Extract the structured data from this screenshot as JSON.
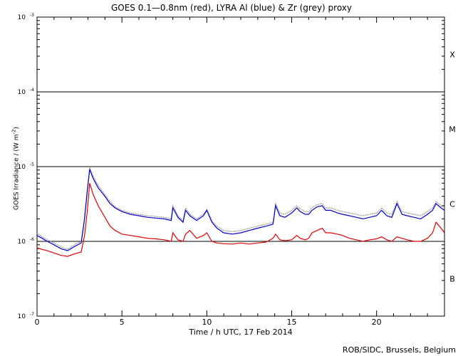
{
  "chart_data": {
    "type": "line",
    "title": "GOES 0.1—0.8nm (red), LYRA Al (blue) & Zr (grey) proxy",
    "xlabel": "Time / h UTC, 17 Feb 2014",
    "ylabel_prefix": "GOES Irradiance / (W m",
    "ylabel_exp": "-2",
    "ylabel_suffix": ")",
    "credit": "ROB/SIDC, Brussels, Belgium",
    "xlim": [
      0,
      24
    ],
    "x_ticks": [
      0,
      5,
      10,
      15,
      20
    ],
    "ylim": [
      1e-07,
      0.001
    ],
    "y_scale": "log",
    "y_ticks": [
      {
        "value": 1e-07,
        "base": "10",
        "exp": "-7"
      },
      {
        "value": 1e-06,
        "base": "10",
        "exp": "-6"
      },
      {
        "value": 1e-05,
        "base": "10",
        "exp": "-5"
      },
      {
        "value": 0.0001,
        "base": "10",
        "exp": "-4"
      },
      {
        "value": 0.001,
        "base": "10",
        "exp": "-3"
      }
    ],
    "flare_classes": [
      {
        "label": "X",
        "value": 0.000316
      },
      {
        "label": "M",
        "value": 3.16e-05
      },
      {
        "label": "C",
        "value": 3.16e-06
      },
      {
        "label": "B",
        "value": 3.16e-07
      }
    ],
    "threshold_lines": [
      1e-06,
      1e-05,
      0.0001
    ],
    "colors": {
      "goes": "#e00000",
      "lyra_al": "#0000cc",
      "lyra_zr": "#888888",
      "axis": "#000000"
    },
    "series": [
      {
        "color": "#e00000",
        "x": [
          0,
          0.3,
          0.6,
          1.0,
          1.4,
          1.8,
          2.2,
          2.6,
          2.8,
          2.95,
          3.1,
          3.3,
          3.6,
          4.0,
          4.3,
          4.6,
          5.0,
          5.5,
          6.0,
          6.5,
          7.0,
          7.5,
          7.9,
          8.0,
          8.3,
          8.6,
          8.75,
          9.0,
          9.4,
          9.8,
          10.0,
          10.3,
          10.6,
          11.0,
          11.5,
          12.0,
          12.5,
          13.0,
          13.5,
          13.9,
          14.05,
          14.3,
          14.6,
          15.0,
          15.3,
          15.5,
          15.8,
          16.0,
          16.2,
          16.5,
          16.8,
          17.0,
          17.3,
          17.7,
          18.0,
          18.4,
          18.8,
          19.2,
          19.6,
          20.0,
          20.3,
          20.6,
          20.9,
          21.2,
          21.5,
          21.8,
          22.2,
          22.6,
          23.0,
          23.3,
          23.5,
          23.8,
          24.0
        ],
        "y": [
          8.2e-07,
          7.8e-07,
          7.5e-07,
          7e-07,
          6.5e-07,
          6.3e-07,
          6.8e-07,
          7.2e-07,
          1.2e-06,
          2.4e-06,
          6e-06,
          4.3e-06,
          3e-06,
          2.1e-06,
          1.6e-06,
          1.4e-06,
          1.25e-06,
          1.2e-06,
          1.15e-06,
          1.1e-06,
          1.08e-06,
          1.05e-06,
          1e-06,
          1.3e-06,
          1.05e-06,
          1e-06,
          1.25e-06,
          1.4e-06,
          1.1e-06,
          1.2e-06,
          1.3e-06,
          1e-06,
          9.5e-07,
          9.3e-07,
          9.2e-07,
          9.5e-07,
          9.2e-07,
          9.5e-07,
          9.8e-07,
          1.1e-06,
          1.25e-06,
          1.05e-06,
          1.02e-06,
          1.05e-06,
          1.2e-06,
          1.1e-06,
          1.05e-06,
          1.1e-06,
          1.3e-06,
          1.4e-06,
          1.5e-06,
          1.3e-06,
          1.3e-06,
          1.25e-06,
          1.2e-06,
          1.1e-06,
          1.05e-06,
          1e-06,
          1.05e-06,
          1.08e-06,
          1.15e-06,
          1.05e-06,
          1e-06,
          1.15e-06,
          1.1e-06,
          1.05e-06,
          1e-06,
          1e-06,
          1.1e-06,
          1.3e-06,
          1.8e-06,
          1.5e-06,
          1.3e-06
        ]
      },
      {
        "color": "#0000cc",
        "x": [
          0,
          0.3,
          0.6,
          1.0,
          1.4,
          1.8,
          2.2,
          2.6,
          2.8,
          2.95,
          3.1,
          3.3,
          3.6,
          4.0,
          4.3,
          4.6,
          5.0,
          5.5,
          6.0,
          6.5,
          7.0,
          7.5,
          7.9,
          8.0,
          8.3,
          8.6,
          8.75,
          9.0,
          9.4,
          9.8,
          10.0,
          10.3,
          10.6,
          11.0,
          11.5,
          12.0,
          12.5,
          13.0,
          13.5,
          13.9,
          14.05,
          14.3,
          14.6,
          15.0,
          15.3,
          15.5,
          15.8,
          16.0,
          16.2,
          16.5,
          16.8,
          17.0,
          17.3,
          17.7,
          18.0,
          18.4,
          18.8,
          19.2,
          19.6,
          20.0,
          20.3,
          20.6,
          20.9,
          21.2,
          21.5,
          21.8,
          22.2,
          22.6,
          23.0,
          23.3,
          23.5,
          23.8,
          24.0
        ],
        "y": [
          1.2e-06,
          1.1e-06,
          1e-06,
          9e-07,
          8e-07,
          7.5e-07,
          8.5e-07,
          9.5e-07,
          2e-06,
          4.5e-06,
          9.2e-06,
          7e-06,
          5.2e-06,
          4e-06,
          3.2e-06,
          2.8e-06,
          2.5e-06,
          2.3e-06,
          2.2e-06,
          2.1e-06,
          2.05e-06,
          2e-06,
          1.9e-06,
          2.8e-06,
          2.1e-06,
          1.8e-06,
          2.6e-06,
          2.2e-06,
          1.9e-06,
          2.2e-06,
          2.6e-06,
          1.8e-06,
          1.5e-06,
          1.3e-06,
          1.25e-06,
          1.3e-06,
          1.4e-06,
          1.5e-06,
          1.6e-06,
          1.7e-06,
          3e-06,
          2.2e-06,
          2.1e-06,
          2.4e-06,
          2.8e-06,
          2.5e-06,
          2.3e-06,
          2.3e-06,
          2.6e-06,
          2.9e-06,
          3e-06,
          2.6e-06,
          2.6e-06,
          2.4e-06,
          2.3e-06,
          2.2e-06,
          2.1e-06,
          2e-06,
          2.1e-06,
          2.2e-06,
          2.6e-06,
          2.2e-06,
          2.1e-06,
          3.2e-06,
          2.3e-06,
          2.2e-06,
          2.1e-06,
          2e-06,
          2.3e-06,
          2.6e-06,
          3.2e-06,
          2.8e-06,
          2.6e-06
        ]
      },
      {
        "color": "#888888",
        "x": [
          0,
          0.3,
          0.6,
          1.0,
          1.4,
          1.8,
          2.2,
          2.6,
          2.8,
          2.95,
          3.1,
          3.3,
          3.6,
          4.0,
          4.3,
          4.6,
          5.0,
          5.5,
          6.0,
          6.5,
          7.0,
          7.5,
          7.9,
          8.0,
          8.3,
          8.6,
          8.75,
          9.0,
          9.4,
          9.8,
          10.0,
          10.3,
          10.6,
          11.0,
          11.5,
          12.0,
          12.5,
          13.0,
          13.5,
          13.9,
          14.05,
          14.3,
          14.6,
          15.0,
          15.3,
          15.5,
          15.8,
          16.0,
          16.2,
          16.5,
          16.8,
          17.0,
          17.3,
          17.7,
          18.0,
          18.4,
          18.8,
          19.2,
          19.6,
          20.0,
          20.3,
          20.6,
          20.9,
          21.2,
          21.5,
          21.8,
          22.2,
          22.6,
          23.0,
          23.3,
          23.5,
          23.8,
          24.0
        ],
        "y": [
          1.3e-06,
          1.15e-06,
          1.05e-06,
          9.5e-07,
          8.5e-07,
          7.8e-07,
          9e-07,
          1e-06,
          2.1e-06,
          4.8e-06,
          9.6e-06,
          7.5e-06,
          5.6e-06,
          4.2e-06,
          3.4e-06,
          2.9e-06,
          2.6e-06,
          2.4e-06,
          2.3e-06,
          2.2e-06,
          2.15e-06,
          2.1e-06,
          2e-06,
          3e-06,
          2.2e-06,
          1.9e-06,
          2.8e-06,
          2.3e-06,
          2e-06,
          2.3e-06,
          2.7e-06,
          1.9e-06,
          1.6e-06,
          1.4e-06,
          1.35e-06,
          1.4e-06,
          1.5e-06,
          1.6e-06,
          1.7e-06,
          1.8e-06,
          3.2e-06,
          2.4e-06,
          2.3e-06,
          2.6e-06,
          3e-06,
          2.7e-06,
          2.5e-06,
          2.5e-06,
          2.8e-06,
          3.1e-06,
          3.2e-06,
          2.8e-06,
          2.8e-06,
          2.6e-06,
          2.5e-06,
          2.4e-06,
          2.3e-06,
          2.2e-06,
          2.3e-06,
          2.4e-06,
          2.8e-06,
          2.4e-06,
          2.3e-06,
          3.4e-06,
          2.5e-06,
          2.4e-06,
          2.3e-06,
          2.2e-06,
          2.5e-06,
          2.8e-06,
          3.4e-06,
          3e-06,
          2.8e-06
        ]
      }
    ]
  }
}
